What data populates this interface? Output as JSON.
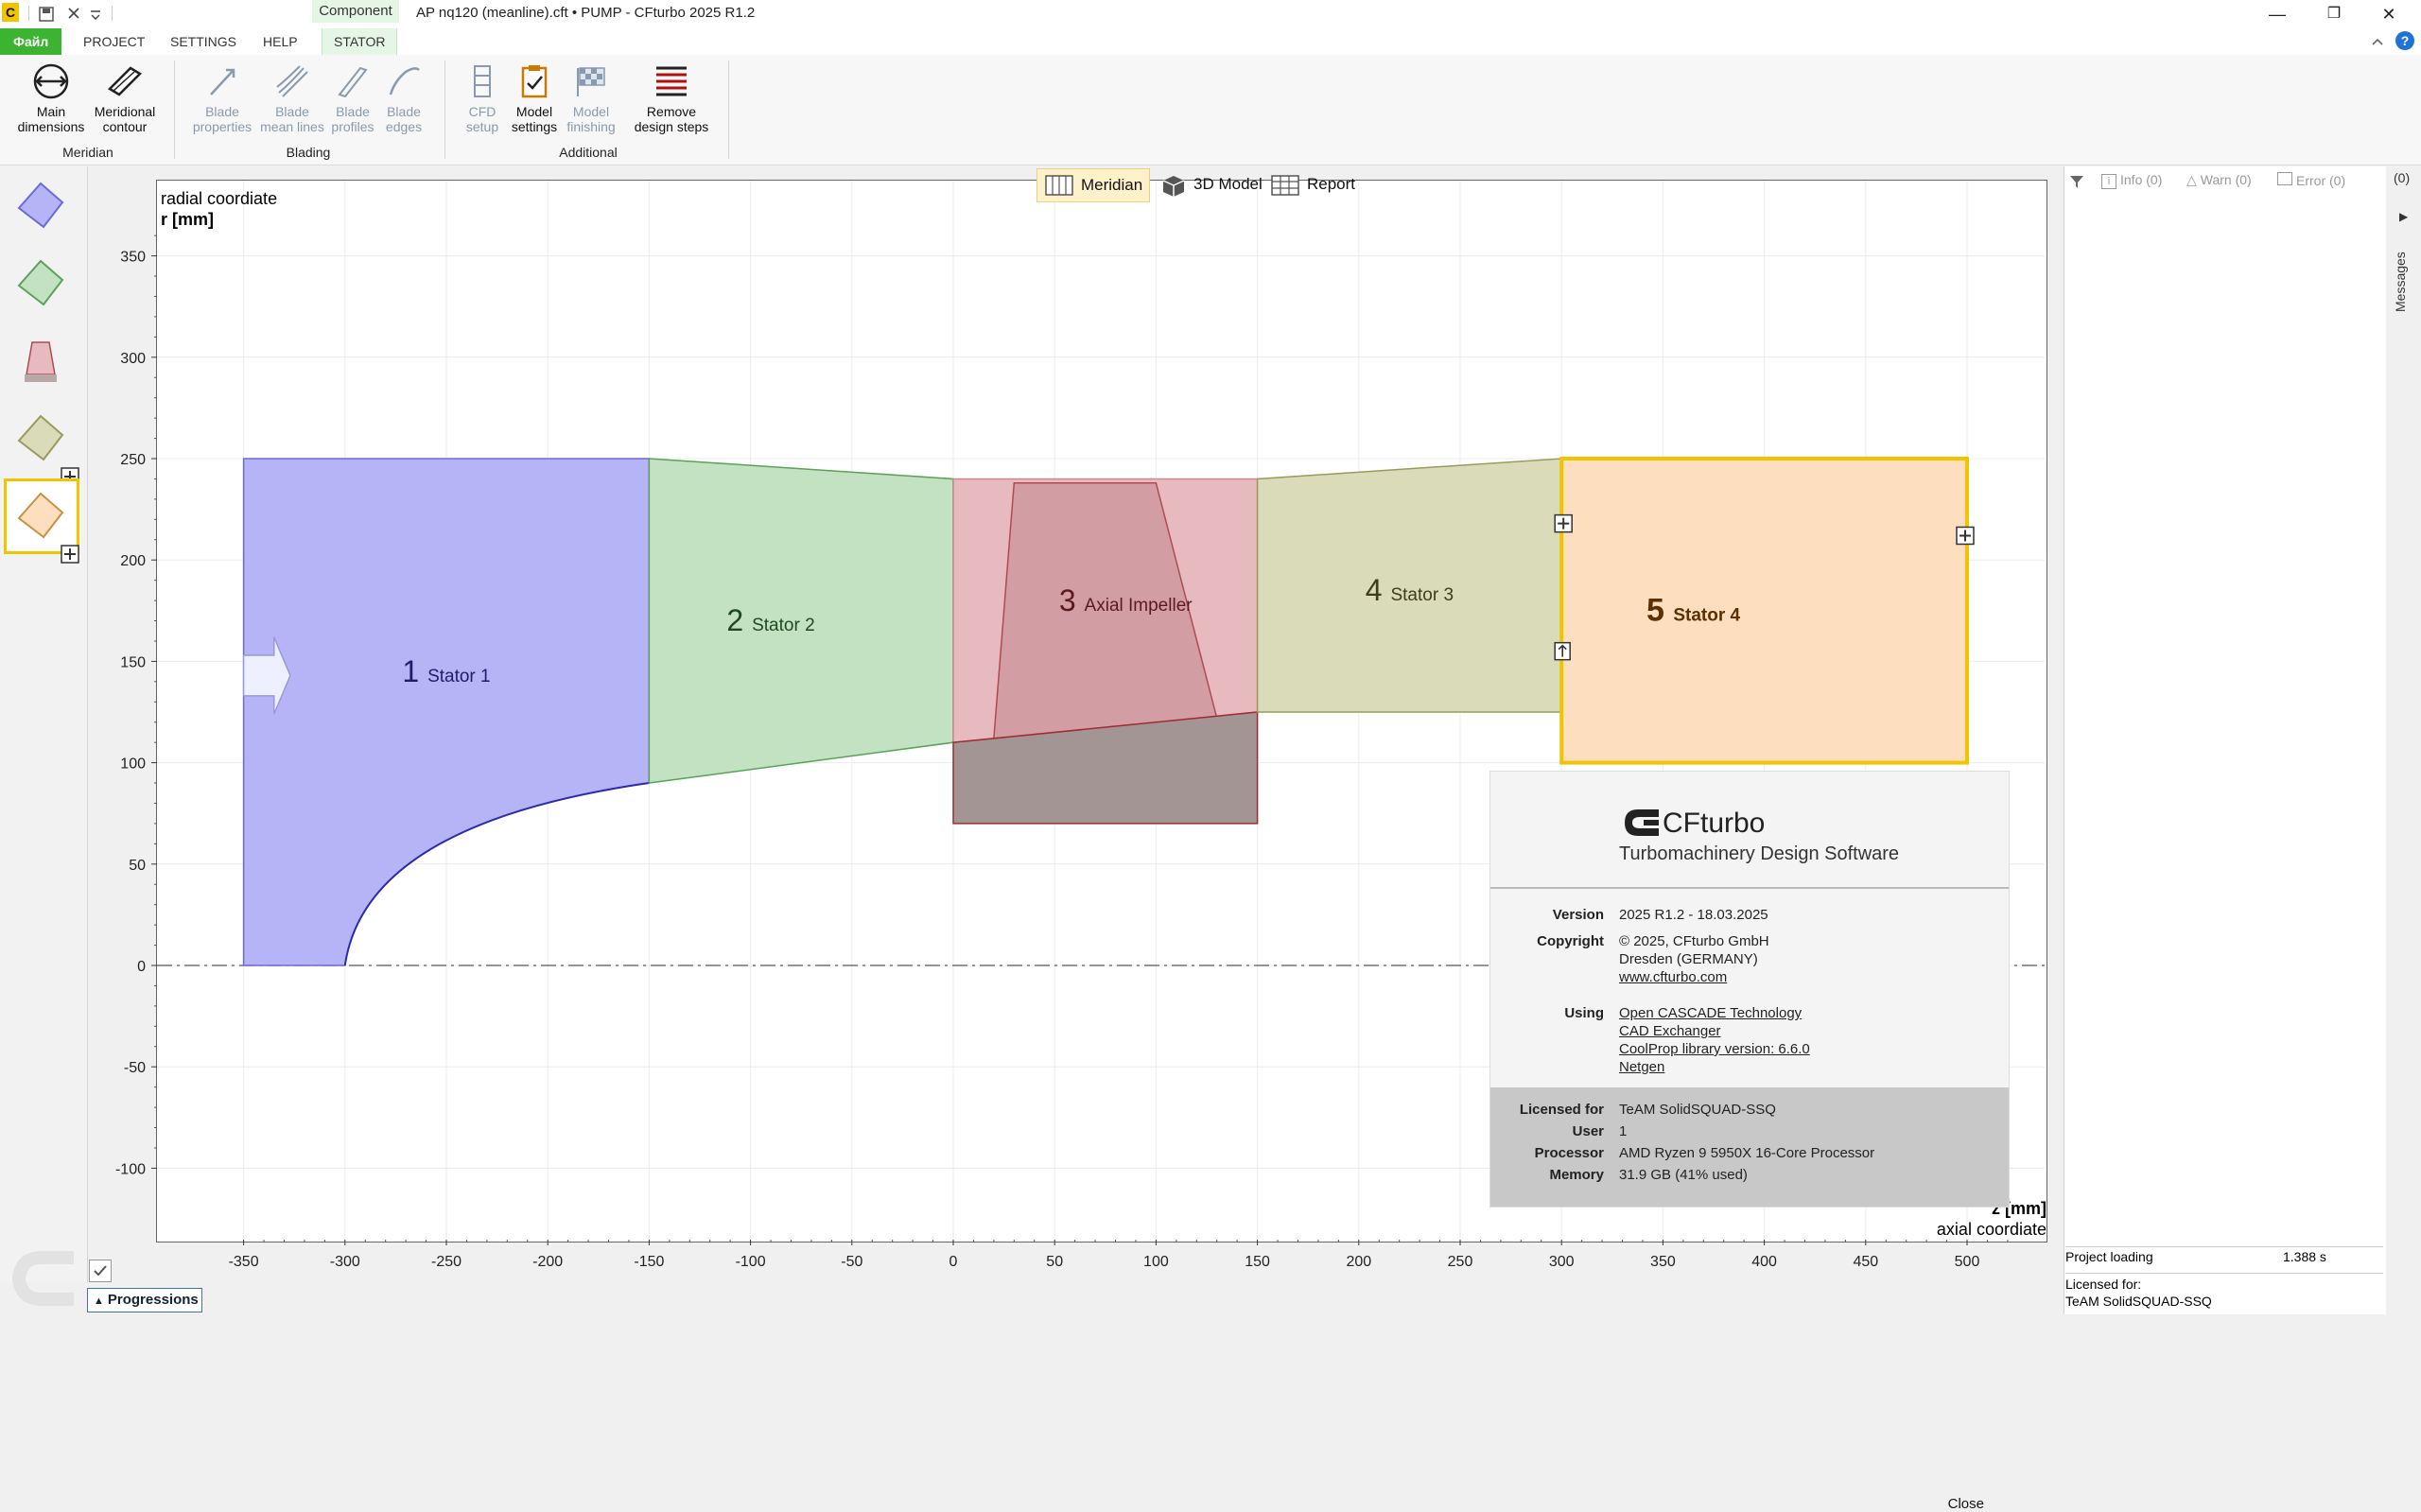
{
  "titlebar": {
    "app_icon": "C",
    "context_group": "Component",
    "title": "AP nq120 (meanline).cft • PUMP - CFturbo 2025 R1.2",
    "qa_icons": [
      "save-icon",
      "close-x-icon",
      "dropdown-icon"
    ],
    "window_controls": [
      "minimize-icon",
      "restore-icon",
      "close-icon"
    ]
  },
  "ribbon_tabs": {
    "file": "Файл",
    "project": "PROJECT",
    "settings": "SETTINGS",
    "help": "HELP",
    "stator": "STATOR"
  },
  "ribbon": {
    "groups": {
      "meridian": "Meridian",
      "blading": "Blading",
      "additional": "Additional"
    },
    "buttons": {
      "main_dimensions": [
        "Main",
        "dimensions"
      ],
      "meridional_contour": [
        "Meridional",
        "contour"
      ],
      "blade_properties": [
        "Blade",
        "properties"
      ],
      "blade_mean_lines": [
        "Blade",
        "mean lines"
      ],
      "blade_profiles": [
        "Blade",
        "profiles"
      ],
      "blade_edges": [
        "Blade",
        "edges"
      ],
      "cfd_setup": [
        "CFD",
        "setup"
      ],
      "model_settings": [
        "Model",
        "settings"
      ],
      "model_finishing": [
        "Model",
        "finishing"
      ],
      "remove_design_steps": [
        "Remove",
        "design steps"
      ]
    }
  },
  "view_tabs": {
    "meridian": "Meridian",
    "model3d": "3D Model",
    "report": "Report"
  },
  "chart_data": {
    "type": "area",
    "ylabel_line1": "radial coordiate",
    "ylabel_line2": "r [mm]",
    "xlabel_line1": "z [mm]",
    "xlabel_line2": "axial coordiate",
    "xlim": [
      -380,
      540
    ],
    "ylim": [
      -140,
      380
    ],
    "x_ticks": [
      -350,
      -300,
      -250,
      -200,
      -150,
      -100,
      -50,
      0,
      50,
      100,
      150,
      200,
      250,
      300,
      350,
      400,
      450,
      500
    ],
    "y_ticks": [
      -100,
      -50,
      0,
      50,
      100,
      150,
      200,
      250,
      300,
      350
    ],
    "components": [
      {
        "num": "1",
        "name": "Stator 1",
        "color": "#b4b4f6",
        "stroke": "#6b6bd8",
        "num_color": "#1d1d6b"
      },
      {
        "num": "2",
        "name": "Stator 2",
        "color": "#c2e2c2",
        "stroke": "#5aa15a",
        "num_color": "#1f4a1f"
      },
      {
        "num": "3",
        "name": "Axial Impeller",
        "color": "#e6babe",
        "stroke": "#b04a52",
        "num_color": "#5a1a1f"
      },
      {
        "num": "4",
        "name": "Stator 3",
        "color": "#dadbb8",
        "stroke": "#9a9a5c",
        "num_color": "#3d3d1a"
      },
      {
        "num": "5",
        "name": "Stator 4",
        "color": "#fddfbf",
        "stroke": "#f2c400",
        "num_color": "#5c3000"
      }
    ],
    "geometry": {
      "stator1": {
        "z": [
          -350,
          -150
        ],
        "r_shroud": 250,
        "hub_start": [
          -300,
          0
        ],
        "hub_end": [
          -150,
          90
        ]
      },
      "stator2": {
        "z": [
          -150,
          0
        ],
        "shroud": [
          [
            -150,
            250
          ],
          [
            0,
            240
          ]
        ],
        "hub": [
          [
            -150,
            90
          ],
          [
            0,
            110
          ]
        ]
      },
      "impeller": {
        "z": [
          0,
          150
        ],
        "r_shroud": 240,
        "hub": [
          [
            0,
            110
          ],
          [
            150,
            125
          ]
        ],
        "blade_top": [
          [
            30,
            238
          ],
          [
            100,
            238
          ]
        ],
        "blade_bottom": [
          [
            20,
            112
          ],
          [
            130,
            122
          ]
        ],
        "hub_body_bottom": 70
      },
      "stator3": {
        "z": [
          150,
          300
        ],
        "shroud": [
          [
            150,
            240
          ],
          [
            300,
            250
          ]
        ],
        "hub": [
          [
            150,
            125
          ],
          [
            300,
            125
          ]
        ]
      },
      "stator4": {
        "z": [
          300,
          500
        ],
        "r": [
          100,
          250
        ]
      }
    }
  },
  "messages": {
    "filter_icon": "filter-icon",
    "info": "Info (0)",
    "warn": "Warn (0)",
    "error": "Error (0)",
    "count": "(0)",
    "side_label": "Messages",
    "status_label": "Project loading",
    "status_value": "1.388 s",
    "license_label": "Licensed for:",
    "license_value": "TeAM SolidSQUAD-SSQ"
  },
  "progressions": "Progressions",
  "about": {
    "logo": "CFturbo",
    "subtitle": "Turbomachinery Design Software",
    "version_label": "Version",
    "version": "2025 R1.2  -  18.03.2025",
    "copyright_label": "Copyright",
    "copyright_lines": [
      "© 2025, CFturbo GmbH",
      "Dresden (GERMANY)"
    ],
    "website": "www.cfturbo.com",
    "using_label": "Using",
    "using": [
      "Open CASCADE Technology",
      "CAD Exchanger",
      "CoolProp library version: 6.6.0",
      "Netgen"
    ],
    "licensed_for_label": "Licensed for",
    "licensed_for": "TeAM SolidSQUAD-SSQ",
    "user_label": "User",
    "user": "1",
    "processor_label": "Processor",
    "processor": "AMD Ryzen 9 5950X 16-Core Processor",
    "memory_label": "Memory",
    "memory": "31.9 GB (41% used)",
    "close": "Close"
  }
}
